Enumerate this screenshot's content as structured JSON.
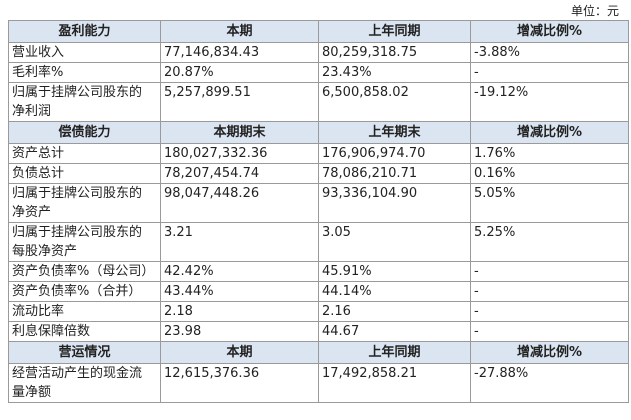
{
  "unit": "单位：元",
  "sections": [
    {
      "header": [
        "盈利能力",
        "本期",
        "上年同期",
        "增减比例%"
      ],
      "rows": [
        [
          "营业收入",
          "77,146,834.43",
          "80,259,318.75",
          "-3.88%"
        ],
        [
          "毛利率%",
          "20.87%",
          "23.43%",
          "-"
        ],
        [
          "归属于挂牌公司股东的净利润",
          "5,257,899.51",
          "6,500,858.02",
          "-19.12%"
        ]
      ]
    },
    {
      "header": [
        "偿债能力",
        "本期期末",
        "上年期末",
        "增减比例%"
      ],
      "rows": [
        [
          "资产总计",
          "180,027,332.36",
          "176,906,974.70",
          "1.76%"
        ],
        [
          "负债总计",
          "78,207,454.74",
          "78,086,210.71",
          "0.16%"
        ],
        [
          "归属于挂牌公司股东的净资产",
          "98,047,448.26",
          "93,336,104.90",
          "5.05%"
        ],
        [
          "归属于挂牌公司股东的每股净资产",
          "3.21",
          "3.05",
          "5.25%"
        ],
        [
          "资产负债率%（母公司）",
          "42.42%",
          "45.91%",
          "-"
        ],
        [
          "资产负债率%（合并）",
          "43.44%",
          "44.14%",
          "-"
        ],
        [
          "流动比率",
          "2.18",
          "2.16",
          "-"
        ],
        [
          "利息保障倍数",
          "23.98",
          "44.67",
          "-"
        ]
      ]
    },
    {
      "header": [
        "营运情况",
        "本期",
        "上年同期",
        "增减比例%"
      ],
      "rows": [
        [
          "经营活动产生的现金流量净额",
          "12,615,376.36",
          "17,492,858.21",
          "-27.88%"
        ]
      ]
    }
  ]
}
